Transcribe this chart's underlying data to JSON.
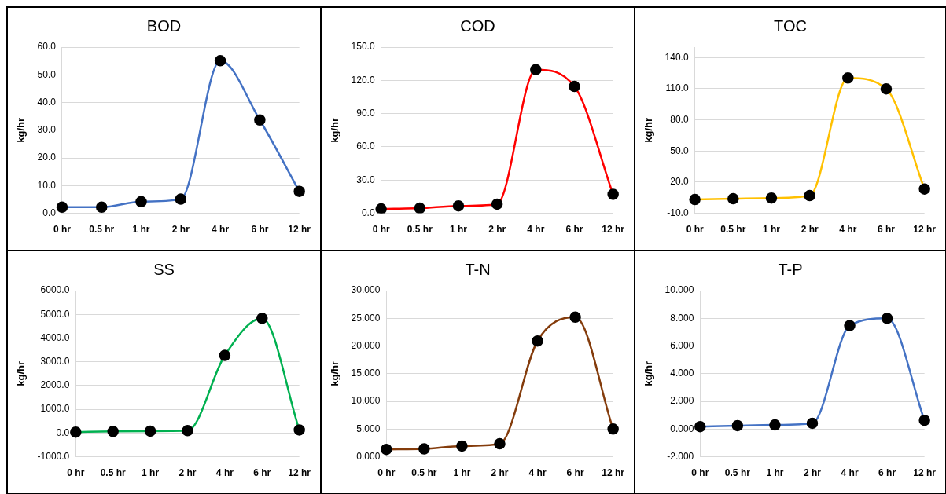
{
  "chart_data": [
    {
      "type": "line",
      "title": "BOD",
      "ylabel": "kg/hr",
      "categories": [
        "0 hr",
        "0.5 hr",
        "1 hr",
        "2 hr",
        "4 hr",
        "6 hr",
        "12 hr"
      ],
      "series": [
        {
          "color": "#4472c4",
          "values": [
            2.2,
            2.2,
            4.2,
            5.1,
            55.1,
            33.7,
            7.9
          ]
        }
      ],
      "ylim": [
        0,
        60
      ],
      "yticks": [
        {
          "value": 0,
          "label": "0.0"
        },
        {
          "value": 10,
          "label": "10.0"
        },
        {
          "value": 20,
          "label": "20.0"
        },
        {
          "value": 30,
          "label": "30.0"
        },
        {
          "value": 40,
          "label": "40.0"
        },
        {
          "value": 50,
          "label": "50.0"
        },
        {
          "value": 60,
          "label": "60.0"
        }
      ],
      "grid": "y",
      "marker": "circle"
    },
    {
      "type": "line",
      "title": "COD",
      "ylabel": "kg/hr",
      "categories": [
        "0 hr",
        "0.5 hr",
        "1 hr",
        "2 hr",
        "4 hr",
        "6 hr",
        "12 hr"
      ],
      "series": [
        {
          "color": "#ff0000",
          "values": [
            3.9,
            4.6,
            6.7,
            8.3,
            129.7,
            114.5,
            17.1
          ]
        }
      ],
      "ylim": [
        0,
        150
      ],
      "yticks": [
        {
          "value": 0,
          "label": "0.0"
        },
        {
          "value": 30,
          "label": "30.0"
        },
        {
          "value": 60,
          "label": "60.0"
        },
        {
          "value": 90,
          "label": "90.0"
        },
        {
          "value": 120,
          "label": "120.0"
        },
        {
          "value": 150,
          "label": "150.0"
        }
      ],
      "grid": "y",
      "marker": "circle"
    },
    {
      "type": "line",
      "title": "TOC",
      "ylabel": "kg/hr",
      "categories": [
        "0 hr",
        "0.5 hr",
        "1 hr",
        "2 hr",
        "4 hr",
        "6 hr",
        "12 hr"
      ],
      "series": [
        {
          "color": "#ffc000",
          "values": [
            3.3,
            4.0,
            4.7,
            7.0,
            120.3,
            109.8,
            13.4
          ]
        }
      ],
      "ylim": [
        -10,
        150
      ],
      "yticks": [
        {
          "value": -10,
          "label": "-10.0"
        },
        {
          "value": 20,
          "label": "20.0"
        },
        {
          "value": 50,
          "label": "50.0"
        },
        {
          "value": 80,
          "label": "80.0"
        },
        {
          "value": 110,
          "label": "110.0"
        },
        {
          "value": 140,
          "label": "140.0"
        }
      ],
      "grid": "y",
      "marker": "circle"
    },
    {
      "type": "line",
      "title": "SS",
      "ylabel": "kg/hr",
      "categories": [
        "0 hr",
        "0.5 hr",
        "1 hr",
        "2 hr",
        "4 hr",
        "6 hr",
        "12 hr"
      ],
      "series": [
        {
          "color": "#00b050",
          "values": [
            40,
            70,
            80,
            100,
            3270,
            4830,
            130
          ]
        }
      ],
      "ylim": [
        -1000,
        6000
      ],
      "yticks": [
        {
          "value": -1000,
          "label": "-1000.0"
        },
        {
          "value": 0,
          "label": "0.0"
        },
        {
          "value": 1000,
          "label": "1000.0"
        },
        {
          "value": 2000,
          "label": "2000.0"
        },
        {
          "value": 3000,
          "label": "3000.0"
        },
        {
          "value": 4000,
          "label": "4000.0"
        },
        {
          "value": 5000,
          "label": "5000.0"
        },
        {
          "value": 6000,
          "label": "6000.0"
        }
      ],
      "grid": "y",
      "marker": "circle"
    },
    {
      "type": "line",
      "title": "T-N",
      "ylabel": "kg/hr",
      "categories": [
        "0 hr",
        "0.5 hr",
        "1 hr",
        "2 hr",
        "4 hr",
        "6 hr",
        "12 hr"
      ],
      "series": [
        {
          "color": "#843c0c",
          "values": [
            1.34,
            1.43,
            1.94,
            2.35,
            20.9,
            25.2,
            5.0
          ]
        }
      ],
      "ylim": [
        0,
        30
      ],
      "yticks": [
        {
          "value": 0,
          "label": "0.000"
        },
        {
          "value": 5,
          "label": "5.000"
        },
        {
          "value": 10,
          "label": "10.000"
        },
        {
          "value": 15,
          "label": "15.000"
        },
        {
          "value": 20,
          "label": "20.000"
        },
        {
          "value": 25,
          "label": "25.000"
        },
        {
          "value": 30,
          "label": "30.000"
        }
      ],
      "grid": "y",
      "marker": "circle"
    },
    {
      "type": "line",
      "title": "T-P",
      "ylabel": "kg/hr",
      "categories": [
        "0 hr",
        "0.5 hr",
        "1 hr",
        "2 hr",
        "4 hr",
        "6 hr",
        "12 hr"
      ],
      "series": [
        {
          "color": "#4472c4",
          "values": [
            0.18,
            0.25,
            0.3,
            0.42,
            7.47,
            8.0,
            0.63
          ]
        }
      ],
      "ylim": [
        -2,
        10
      ],
      "yticks": [
        {
          "value": -2,
          "label": "-2.000"
        },
        {
          "value": 0,
          "label": "0.000"
        },
        {
          "value": 2,
          "label": "2.000"
        },
        {
          "value": 4,
          "label": "4.000"
        },
        {
          "value": 6,
          "label": "6.000"
        },
        {
          "value": 8,
          "label": "8.000"
        },
        {
          "value": 10,
          "label": "10.000"
        }
      ],
      "grid": "y",
      "marker": "circle"
    }
  ]
}
